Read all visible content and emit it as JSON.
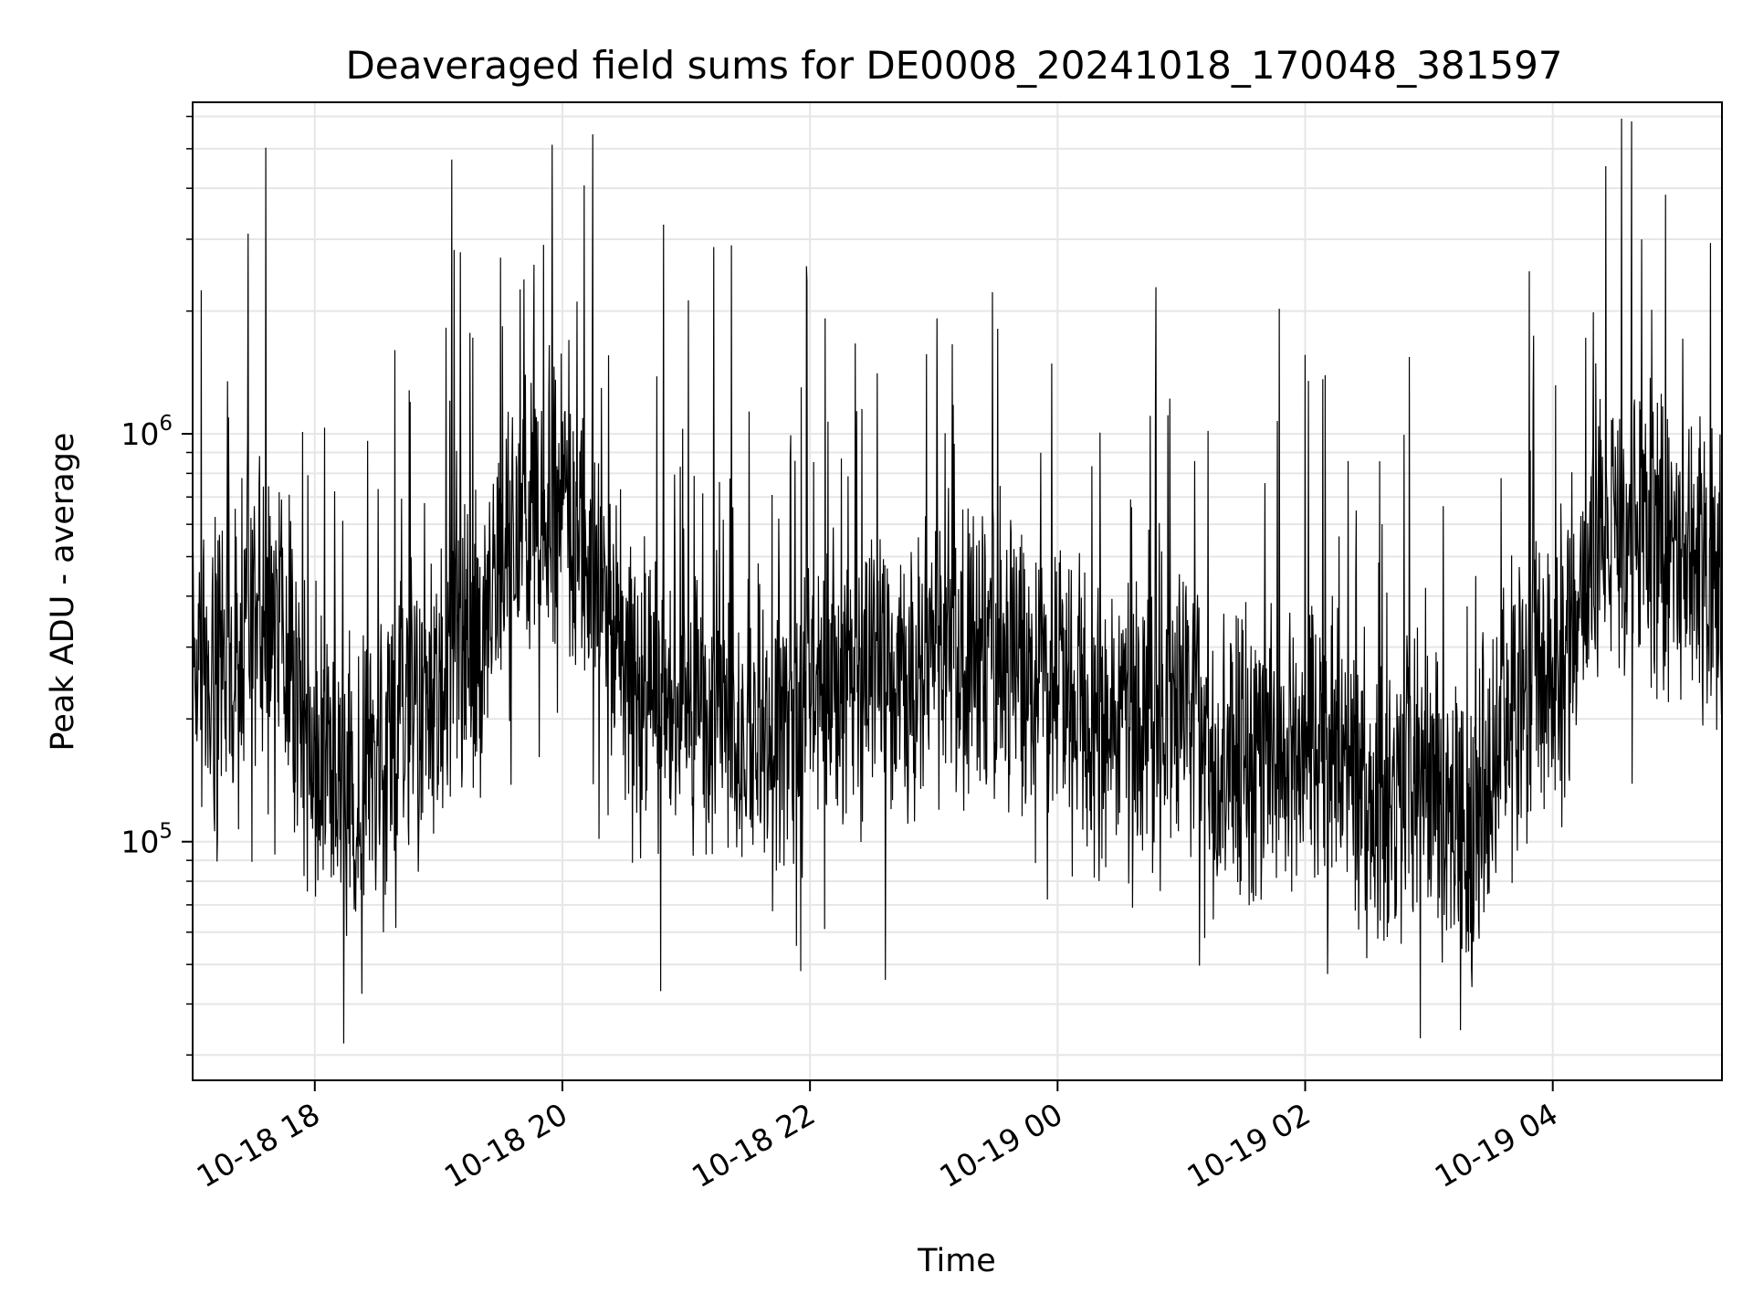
{
  "chart_data": {
    "type": "line",
    "title": "Deaveraged field sums for DE0008_20241018_170048_381597",
    "xlabel": "Time",
    "ylabel": "Peak ADU - average",
    "yscale": "log",
    "xlim": [
      "2024-10-18 17:00:48",
      "2024-10-19 05:22:00"
    ],
    "ylim": [
      26000,
      6500000
    ],
    "grid": true,
    "legend": "none",
    "x_tick_labels": [
      "10-18 18",
      "10-18 20",
      "10-18 22",
      "10-19 00",
      "10-19 02",
      "10-19 04"
    ],
    "x_tick_values": [
      "2024-10-18 18:00",
      "2024-10-18 20:00",
      "2024-10-18 22:00",
      "2024-10-19 00:00",
      "2024-10-19 02:00",
      "2024-10-19 04:00"
    ],
    "y_tick_labels": [
      {
        "base": "10",
        "exp": "5"
      },
      {
        "base": "10",
        "exp": "6"
      }
    ],
    "y_tick_values": [
      100000,
      1000000
    ],
    "line_color": "#000000",
    "series": [
      {
        "x": [
          "2024-10-18 17:00",
          "2024-10-18 17:20",
          "2024-10-18 17:40",
          "2024-10-18 18:00",
          "2024-10-18 18:20",
          "2024-10-18 18:40",
          "2024-10-18 19:00",
          "2024-10-18 19:20",
          "2024-10-18 19:40",
          "2024-10-18 20:00",
          "2024-10-18 20:20",
          "2024-10-18 20:40",
          "2024-10-18 21:00",
          "2024-10-18 21:20",
          "2024-10-18 21:40",
          "2024-10-18 22:00",
          "2024-10-18 22:20",
          "2024-10-18 22:40",
          "2024-10-18 23:00",
          "2024-10-18 23:20",
          "2024-10-18 23:40",
          "2024-10-19 00:00",
          "2024-10-19 00:20",
          "2024-10-19 00:40",
          "2024-10-19 01:00",
          "2024-10-19 01:20",
          "2024-10-19 01:40",
          "2024-10-19 02:00",
          "2024-10-19 02:20",
          "2024-10-19 02:40",
          "2024-10-19 03:00",
          "2024-10-19 03:20",
          "2024-10-19 03:40",
          "2024-10-19 04:00",
          "2024-10-19 04:20",
          "2024-10-19 04:40",
          "2024-10-19 05:00",
          "2024-10-19 05:20"
        ],
        "y": [
          260000,
          270000,
          400000,
          160000,
          130000,
          200000,
          260000,
          330000,
          600000,
          750000,
          360000,
          230000,
          190000,
          200000,
          170000,
          230000,
          250000,
          240000,
          290000,
          290000,
          300000,
          220000,
          200000,
          190000,
          210000,
          150000,
          160000,
          200000,
          150000,
          120000,
          160000,
          100000,
          220000,
          230000,
          480000,
          620000,
          480000,
          420000
        ]
      }
    ]
  }
}
